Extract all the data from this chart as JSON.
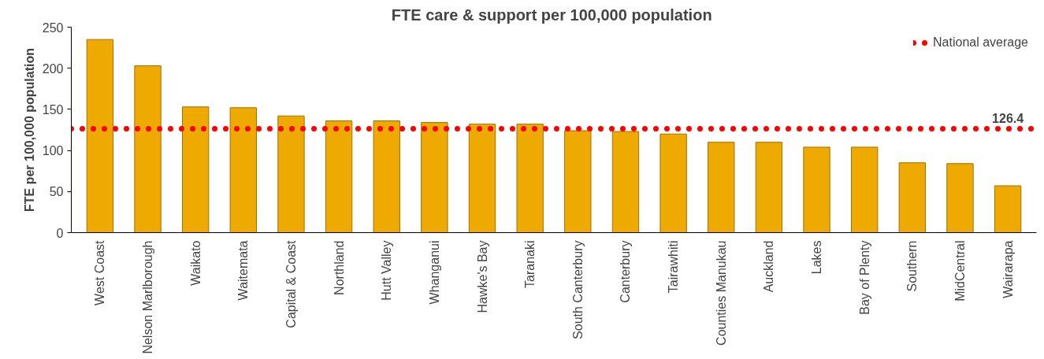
{
  "chart_data": {
    "type": "bar",
    "title": "FTE care & support  per 100,000 population",
    "ylabel": "FTE per 100,000 population",
    "categories": [
      "West Coast",
      "Nelson Marlborough",
      "Waikato",
      "Waitemata",
      "Capital & Coast",
      "Northland",
      "Hutt Valley",
      "Whanganui",
      "Hawke's Bay",
      "Taranaki",
      "South Canterbury",
      "Canterbury",
      "Tairawhiti",
      "Counties Manukau",
      "Auckland",
      "Lakes",
      "Bay of Plenty",
      "Southern",
      "MidCentral",
      "Wairarapa"
    ],
    "values": [
      235,
      203,
      153,
      152,
      142,
      136,
      136,
      134,
      132,
      132,
      124,
      123,
      120,
      110,
      110,
      104,
      104,
      85,
      84,
      57
    ],
    "color": "#eeaa00",
    "ylim": [
      0,
      250
    ],
    "yticks": [
      0,
      50,
      100,
      150,
      200,
      250
    ],
    "grid": false,
    "legend": "top right",
    "ref_lines": [
      {
        "axis": "y",
        "value": 126.4,
        "label": "National average",
        "color": "#ff0000",
        "line_style": "dotted"
      }
    ],
    "annotations": [
      {
        "text": "126.4",
        "x": "Wairarapa",
        "y": 126.4
      }
    ]
  }
}
